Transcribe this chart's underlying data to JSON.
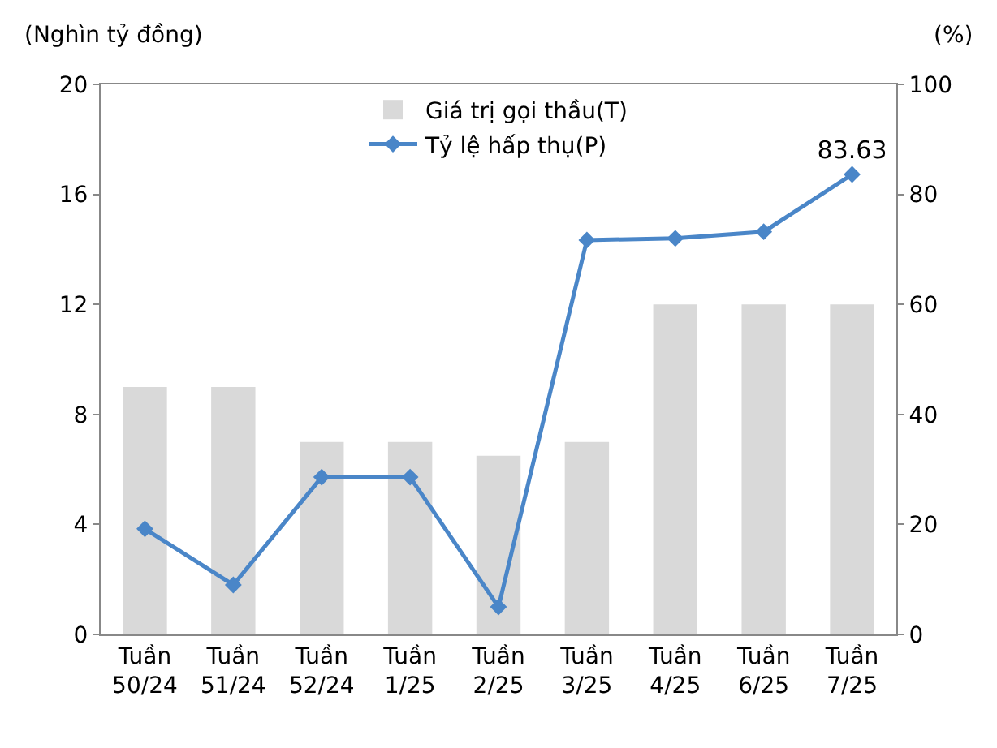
{
  "chart_data": {
    "type": "bar",
    "ylabel": "(Nghìn tỷ đồng)",
    "y2label": "(%)",
    "categories": [
      "Tuần 50/24",
      "Tuần 51/24",
      "Tuần 52/24",
      "Tuần 1/25",
      "Tuần 2/25",
      "Tuần 3/25",
      "Tuần 4/25",
      "Tuần 6/25",
      "Tuần 7/25"
    ],
    "series": [
      {
        "name": "Giá trị gọi thầu(T)",
        "color": "#d9d9d9",
        "values": [
          9,
          9,
          7,
          7,
          6.5,
          7,
          12,
          12,
          12
        ]
      },
      {
        "name": "Tỷ lệ hấp thụ(P)",
        "type": "line",
        "axis": "y2",
        "color": "#4a86c8",
        "marker": "diamond",
        "values": [
          19.2,
          9.0,
          28.6,
          28.6,
          5.0,
          71.7,
          72.0,
          73.2,
          83.63
        ],
        "value_labels": [
          null,
          null,
          null,
          null,
          null,
          null,
          null,
          null,
          "83.63"
        ]
      }
    ],
    "ylim": [
      0,
      20
    ],
    "yticks": [
      0,
      4,
      8,
      12,
      16,
      20
    ],
    "y2lim": [
      0,
      100
    ],
    "y2ticks": [
      0,
      20,
      40,
      60,
      80,
      100
    ],
    "grid": false,
    "legend": "top"
  }
}
